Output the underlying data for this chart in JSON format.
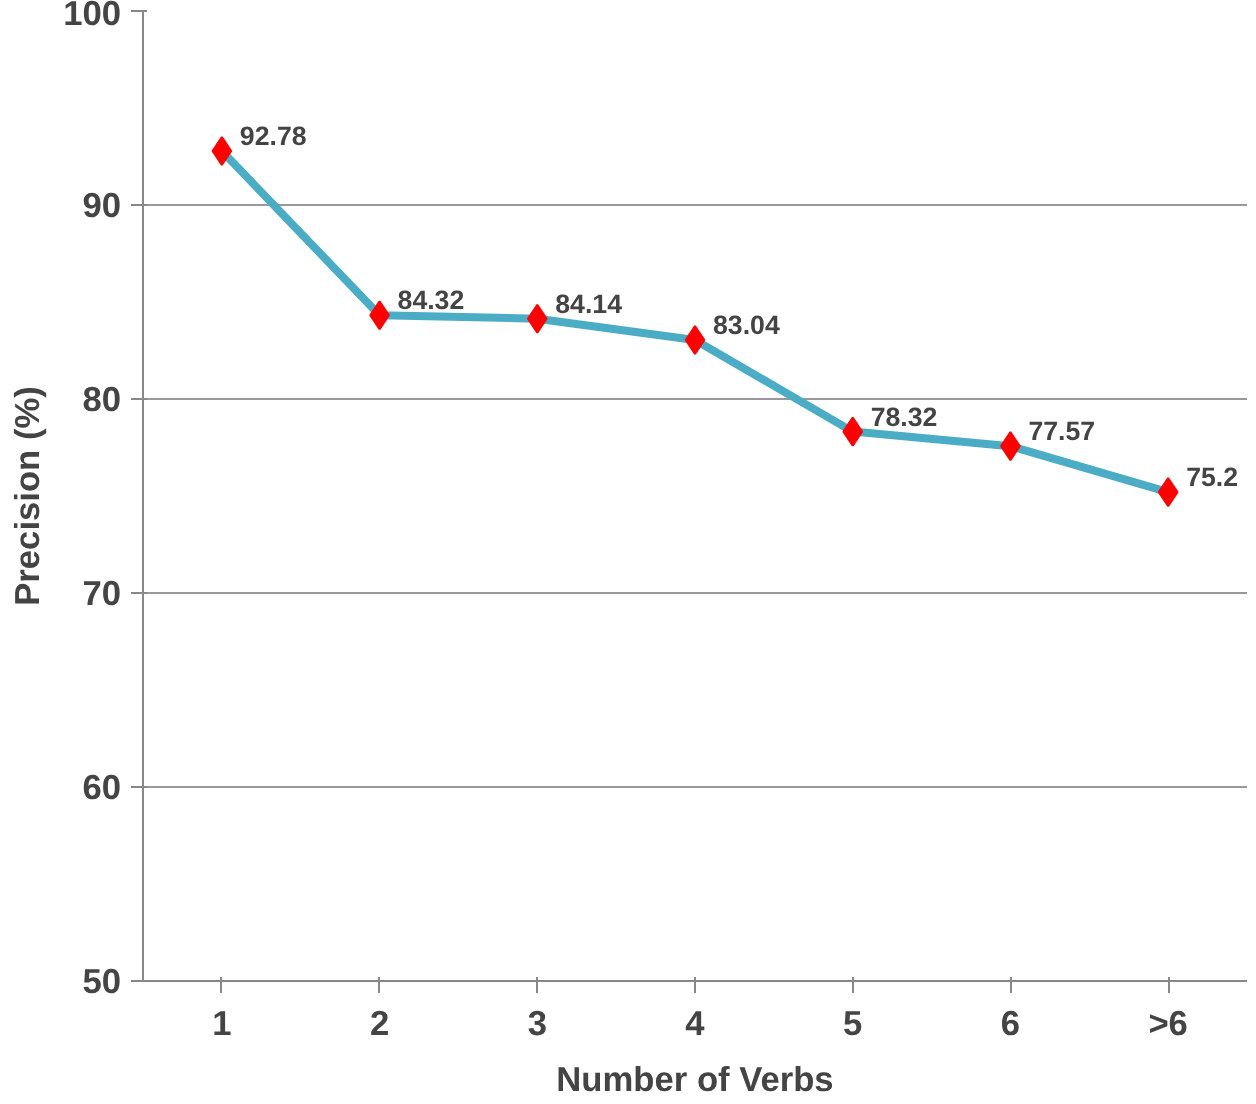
{
  "chart_data": {
    "type": "line",
    "xlabel": "Number of Verbs",
    "ylabel": "Precision (%)",
    "categories": [
      "1",
      "2",
      "3",
      "4",
      "5",
      "6",
      ">6"
    ],
    "series": [
      {
        "color": "#4bacc6",
        "colors": [
          "#ff0000",
          "#ff0000",
          "#ff0000",
          "#ff0000",
          "#ff0000",
          "#ff0000",
          "#ff0000"
        ],
        "values": [
          92.78,
          84.32,
          84.14,
          83.04,
          78.32,
          77.57,
          75.2
        ]
      }
    ],
    "marker": "diamond",
    "line_style": "solid",
    "ylim": [
      50,
      100
    ],
    "yticks": [
      50,
      60,
      70,
      80,
      90,
      100
    ],
    "grid": "y",
    "data_labels": true
  }
}
